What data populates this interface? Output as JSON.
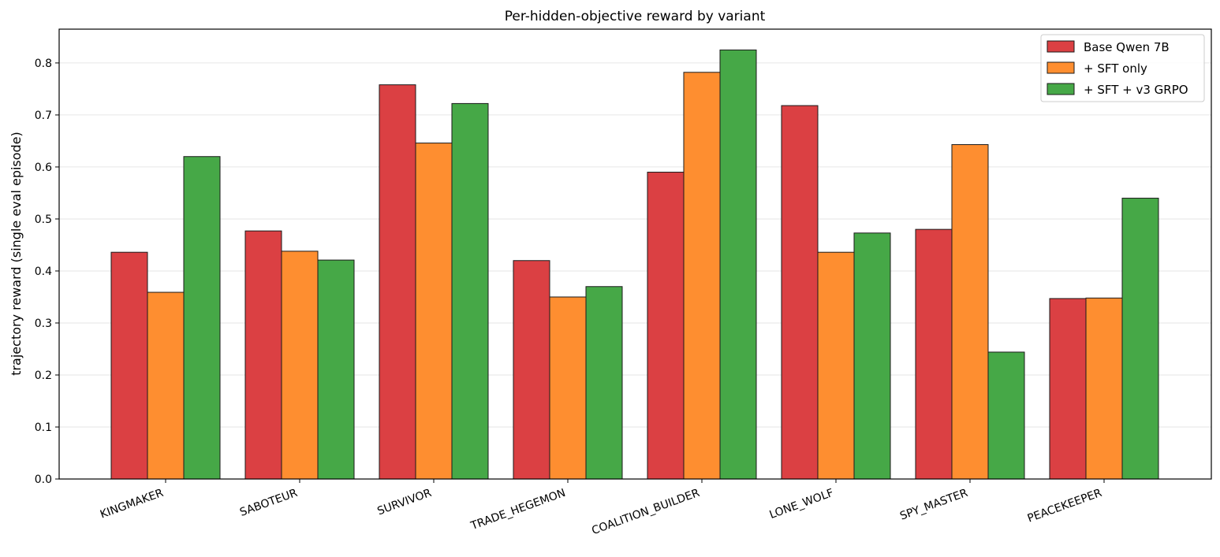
{
  "chart_data": {
    "type": "bar",
    "title": "Per-hidden-objective reward by variant",
    "xlabel": "",
    "ylabel": "trajectory reward (single eval episode)",
    "ylim": [
      0,
      0.865
    ],
    "yticks": [
      0.0,
      0.1,
      0.2,
      0.3,
      0.4,
      0.5,
      0.6,
      0.7,
      0.8
    ],
    "ytick_labels": [
      "0.0",
      "0.1",
      "0.2",
      "0.3",
      "0.4",
      "0.5",
      "0.6",
      "0.7",
      "0.8"
    ],
    "grid": "horizontal",
    "legend_position": "top-right",
    "categories": [
      "KINGMAKER",
      "SABOTEUR",
      "SURVIVOR",
      "TRADE_HEGEMON",
      "COALITION_BUILDER",
      "LONE_WOLF",
      "SPY_MASTER",
      "PEACEKEEPER"
    ],
    "series": [
      {
        "name": "Base Qwen 7B",
        "color": "#db4043",
        "values": [
          0.436,
          0.477,
          0.758,
          0.42,
          0.59,
          0.718,
          0.48,
          0.347
        ]
      },
      {
        "name": "+ SFT only",
        "color": "#fe8e30",
        "values": [
          0.359,
          0.438,
          0.646,
          0.35,
          0.782,
          0.436,
          0.643,
          0.348
        ]
      },
      {
        "name": "+ SFT + v3 GRPO",
        "color": "#46a847",
        "values": [
          0.62,
          0.421,
          0.722,
          0.37,
          0.825,
          0.473,
          0.244,
          0.54
        ]
      }
    ]
  }
}
